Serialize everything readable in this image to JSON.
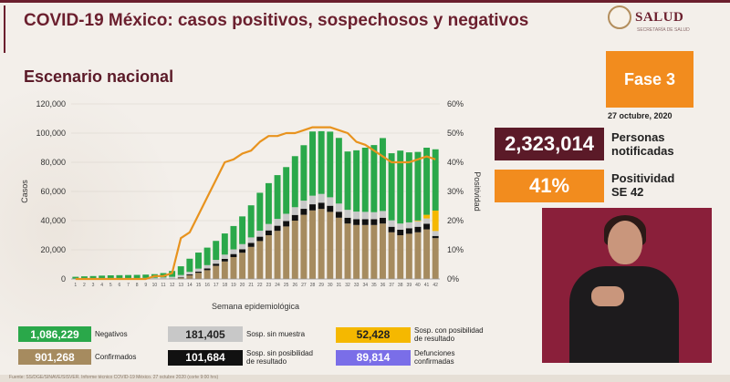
{
  "header": {
    "title": "COVID-19 México: casos positivos, sospechosos y negativos",
    "logo_text": "SALUD",
    "logo_sub": "SECRETARÍA DE SALUD"
  },
  "subtitle": "Escenario nacional",
  "fase": "Fase 3",
  "date": "27 octubre, 2020",
  "stats": {
    "notificadas_value": "2,323,014",
    "notificadas_label_1": "Personas",
    "notificadas_label_2": "notificadas",
    "positividad_value": "41%",
    "positividad_label_1": "Positividad",
    "positividad_label_2": "SE 42"
  },
  "legend": [
    {
      "value": "1,086,229",
      "label_1": "Negativos",
      "label_2": "",
      "color": "#2aa84a",
      "text": "#ffffff"
    },
    {
      "value": "181,405",
      "label_1": "Sosp. sin muestra",
      "label_2": "",
      "color": "#c8c8c8",
      "text": "#222222"
    },
    {
      "value": "52,428",
      "label_1": "Sosp. con posibilidad",
      "label_2": "de resultado",
      "color": "#f5b800",
      "text": "#222222"
    },
    {
      "value": "901,268",
      "label_1": "Confirmados",
      "label_2": "",
      "color": "#a68b5f",
      "text": "#ffffff"
    },
    {
      "value": "101,684",
      "label_1": "Sosp. sin posibilidad",
      "label_2": "de resultado",
      "color": "#111111",
      "text": "#ffffff"
    },
    {
      "value": "89,814",
      "label_1": "Defunciones",
      "label_2": "confirmadas",
      "color": "#7a6ee8",
      "text": "#ffffff"
    }
  ],
  "footer": "Fuente: SS/DGE/SINAVE/SISVER. Informe técnico COVID-19 México. 27 octubre 2020 (corte 9:00 hrs)",
  "chart_data": {
    "type": "bar",
    "stacked": true,
    "xlabel": "Semana epidemiológica",
    "ylabel": "Casos",
    "y2label": "Positividad",
    "ylim": [
      0,
      120000
    ],
    "y2lim": [
      0,
      60
    ],
    "yticks": [
      "0",
      "20,000",
      "40,000",
      "60,000",
      "80,000",
      "100,000",
      "120,000"
    ],
    "y2ticks": [
      "0%",
      "10%",
      "20%",
      "30%",
      "40%",
      "50%",
      "60%"
    ],
    "categories": [
      "1",
      "2",
      "3",
      "4",
      "5",
      "6",
      "7",
      "8",
      "9",
      "10",
      "11",
      "12",
      "13",
      "14",
      "15",
      "16",
      "17",
      "18",
      "19",
      "20",
      "21",
      "22",
      "23",
      "24",
      "25",
      "26",
      "27",
      "28",
      "29",
      "30",
      "31",
      "32",
      "33",
      "34",
      "35",
      "36",
      "37",
      "38",
      "39",
      "40",
      "41",
      "42"
    ],
    "series": [
      {
        "name": "Confirmados",
        "color": "#a68b5f",
        "values": [
          0,
          0,
          0,
          0,
          0,
          0,
          0,
          0,
          0,
          0,
          30,
          200,
          900,
          2500,
          4200,
          6000,
          9000,
          12000,
          15000,
          18000,
          22000,
          26000,
          30000,
          33000,
          36000,
          40000,
          44000,
          47000,
          48000,
          46000,
          42000,
          38000,
          37000,
          37000,
          37000,
          38000,
          32000,
          30000,
          31000,
          32000,
          34000,
          28000
        ]
      },
      {
        "name": "Sosp. sin posibilidad de resultado",
        "color": "#111111",
        "values": [
          0,
          0,
          0,
          0,
          0,
          0,
          0,
          0,
          0,
          0,
          10,
          80,
          300,
          600,
          900,
          1200,
          1500,
          1800,
          2100,
          2400,
          2700,
          3000,
          3300,
          3500,
          3700,
          3900,
          4100,
          4200,
          4300,
          4200,
          4100,
          4000,
          4000,
          4000,
          4000,
          4000,
          3800,
          3800,
          3800,
          3800,
          3900,
          1500
        ]
      },
      {
        "name": "Sosp. sin muestra",
        "color": "#c8c8c8",
        "values": [
          300,
          400,
          500,
          500,
          500,
          600,
          600,
          600,
          700,
          800,
          1000,
          1200,
          1500,
          1800,
          2000,
          2300,
          2600,
          2900,
          3200,
          3500,
          3800,
          4100,
          4400,
          4700,
          5000,
          5300,
          5600,
          5900,
          6000,
          5800,
          5600,
          5400,
          5200,
          5000,
          4800,
          4600,
          4400,
          4200,
          4000,
          3800,
          3600,
          3400
        ]
      },
      {
        "name": "Sosp. con posibilidad de resultado",
        "color": "#f5b800",
        "values": [
          0,
          0,
          0,
          0,
          0,
          0,
          0,
          0,
          0,
          0,
          0,
          0,
          0,
          0,
          0,
          0,
          0,
          0,
          0,
          0,
          0,
          0,
          0,
          0,
          0,
          0,
          0,
          0,
          0,
          0,
          0,
          0,
          0,
          0,
          0,
          0,
          0,
          0,
          0,
          500,
          2500,
          14000
        ]
      },
      {
        "name": "Negativos",
        "color": "#2aa84a",
        "values": [
          1200,
          1400,
          1500,
          1800,
          2000,
          2000,
          2100,
          2200,
          2300,
          2500,
          3000,
          4000,
          6000,
          9000,
          11000,
          12000,
          13000,
          14500,
          16000,
          19000,
          22000,
          26000,
          28000,
          30000,
          32000,
          35000,
          38000,
          44000,
          43000,
          45000,
          45000,
          40000,
          42000,
          44000,
          46000,
          50000,
          46000,
          50000,
          48000,
          47000,
          46000,
          42000
        ]
      }
    ],
    "line": {
      "name": "Positividad",
      "color": "#e8931e",
      "values": [
        0,
        0,
        0,
        0,
        0,
        0,
        0,
        0,
        0,
        1,
        1,
        2,
        14,
        16,
        22,
        28,
        34,
        40,
        41,
        43,
        44,
        47,
        49,
        49,
        50,
        50,
        51,
        52,
        52,
        52,
        51,
        50,
        47,
        46,
        44,
        42,
        40,
        40,
        40,
        41,
        42,
        41
      ]
    }
  }
}
